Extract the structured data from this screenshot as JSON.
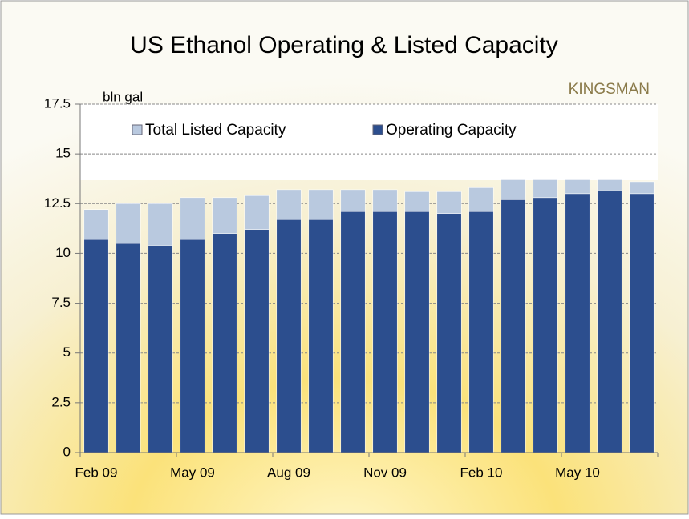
{
  "chart_data": {
    "type": "stacked_bar",
    "title": "US Ethanol Operating & Listed Capacity",
    "y_label": "bln gal",
    "brand": "KINGSMAN",
    "categories": [
      "Feb 09",
      null,
      null,
      "May 09",
      null,
      null,
      "Aug 09",
      null,
      null,
      "Nov 09",
      null,
      null,
      "Feb 10",
      null,
      null,
      "May 10",
      null,
      null
    ],
    "series": [
      {
        "name": "Operating Capacity",
        "color": "#2c4e8e",
        "values": [
          10.7,
          10.5,
          10.4,
          10.7,
          11.0,
          11.2,
          11.7,
          11.7,
          12.1,
          12.1,
          12.1,
          12.0,
          12.1,
          12.7,
          12.8,
          13.0,
          13.15,
          13.0
        ]
      },
      {
        "name": "Total Listed Capacity",
        "color": "#b9c9df",
        "values": [
          1.5,
          2.0,
          2.1,
          2.1,
          1.8,
          1.7,
          1.5,
          1.5,
          1.1,
          1.1,
          1.0,
          1.1,
          1.2,
          1.0,
          0.9,
          0.7,
          0.55,
          0.6
        ]
      }
    ],
    "ylim": [
      0,
      17.5
    ],
    "yticks": [
      0,
      2.5,
      5,
      7.5,
      10,
      12.5,
      15,
      17.5
    ],
    "grid": true,
    "legend": "top"
  }
}
